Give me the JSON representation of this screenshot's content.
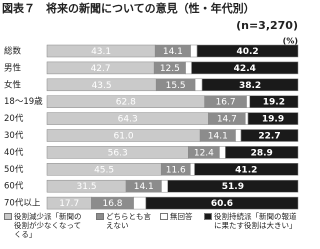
{
  "chart_data": {
    "type": "stacked_barh",
    "title": "図表７　将来の新聞についての意見（性・年代別）",
    "subtitle": "(n=3,270)",
    "unit": "(%)",
    "categories": [
      "総数",
      "男性",
      "女性",
      "18～19歳",
      "20代",
      "30代",
      "40代",
      "50代",
      "60代",
      "70代以上"
    ],
    "xlim": [
      0,
      100
    ],
    "series": [
      {
        "name": "役割減少派「新聞の役割が少なくなってくる」",
        "color": "#cacaca",
        "text_color": "#ffffff",
        "labels": true,
        "values": [
          43.1,
          42.7,
          43.5,
          62.8,
          64.3,
          61.0,
          56.3,
          45.5,
          31.5,
          17.7
        ],
        "value_labels": [
          "43.1",
          "42.7",
          "43.5",
          "62.8",
          "64.3",
          "61.0",
          "56.3",
          "45.5",
          "31.5",
          "17.7"
        ]
      },
      {
        "name": "どちらとも言えない",
        "color": "#8c8c8c",
        "text_color": "#ffffff",
        "labels": true,
        "values": [
          14.1,
          12.5,
          15.5,
          16.7,
          14.7,
          14.1,
          12.4,
          11.6,
          14.1,
          16.8
        ],
        "value_labels": [
          "14.1",
          "12.5",
          "15.5",
          "16.7",
          "14.7",
          "14.1",
          "12.4",
          "11.6",
          "14.1",
          "16.8"
        ]
      },
      {
        "name": "無回答",
        "color": "#ffffff",
        "text_color": "#000000",
        "labels": false,
        "values": [
          2.6,
          2.4,
          2.8,
          1.3,
          1.1,
          2.2,
          2.4,
          1.7,
          2.5,
          4.9
        ]
      },
      {
        "name": "役割持続派「新聞の報道に果たす役割は大きい」",
        "color": "#1a1a1a",
        "text_color": "#ffffff",
        "labels": true,
        "values": [
          40.2,
          42.4,
          38.2,
          19.2,
          19.9,
          22.7,
          28.9,
          41.2,
          51.9,
          60.6
        ],
        "value_labels": [
          "40.2",
          "42.4",
          "38.2",
          "19.2",
          "19.9",
          "22.7",
          "28.9",
          "41.2",
          "51.9",
          "60.6"
        ]
      }
    ]
  }
}
